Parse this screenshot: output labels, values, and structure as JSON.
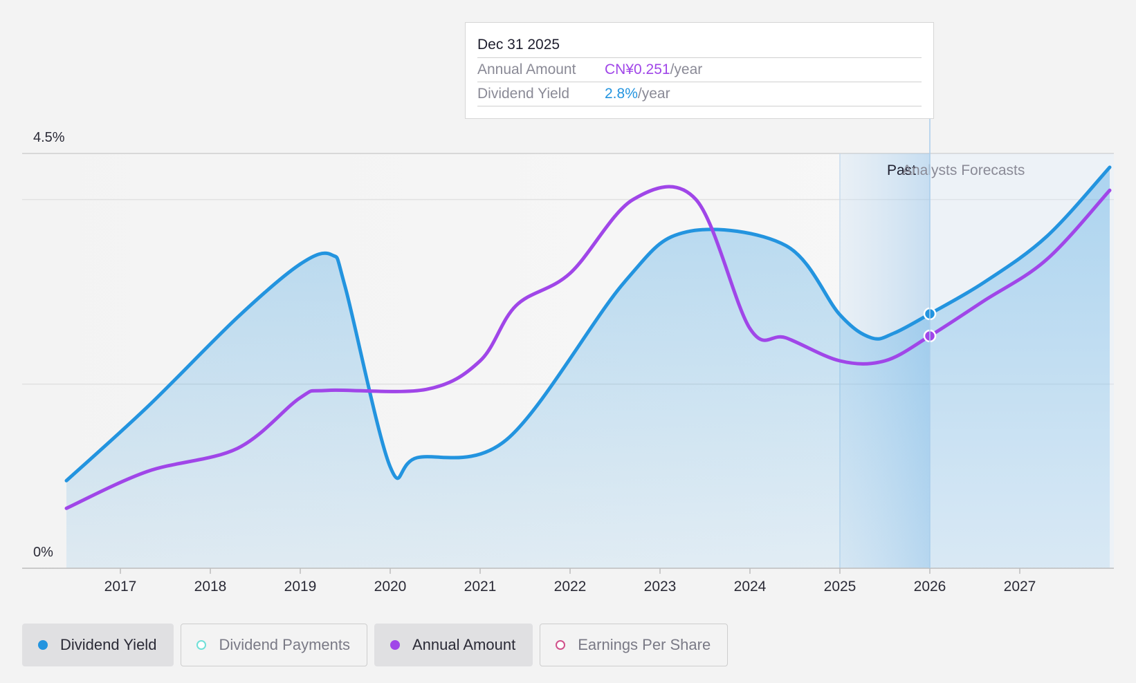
{
  "chart_data": {
    "type": "line",
    "y_ticks": [
      "4.5%",
      "0%"
    ],
    "ylim": [
      0,
      4.5
    ],
    "x_ticks": [
      "2017",
      "2018",
      "2019",
      "2020",
      "2021",
      "2022",
      "2023",
      "2024",
      "2025",
      "2026",
      "2027"
    ],
    "xlim": [
      2016.1,
      2028.0
    ],
    "past_label": "Past",
    "forecast_label": "Analysts Forecasts",
    "series": [
      {
        "name": "Dividend Yield",
        "color": "#2394df",
        "area": true,
        "x": [
          2016.4,
          2017.3,
          2018.3,
          2019.0,
          2019.35,
          2019.5,
          2020.0,
          2020.3,
          2021.3,
          2022.6,
          2023.3,
          2024.4,
          2025.0,
          2025.35,
          2025.6,
          2026.0,
          2026.6,
          2027.3,
          2028.0
        ],
        "y": [
          0.95,
          1.75,
          2.72,
          3.3,
          3.4,
          3.05,
          1.1,
          1.2,
          1.4,
          3.1,
          3.65,
          3.5,
          2.75,
          2.5,
          2.55,
          2.76,
          3.1,
          3.6,
          4.35
        ]
      },
      {
        "name": "Annual Amount",
        "color": "#a046e8",
        "area": false,
        "x": [
          2016.4,
          2017.3,
          2018.3,
          2019.0,
          2019.3,
          2020.4,
          2021.0,
          2021.4,
          2022.0,
          2022.7,
          2023.4,
          2024.0,
          2024.4,
          2025.0,
          2025.5,
          2026.0,
          2026.6,
          2027.3,
          2028.0
        ],
        "y": [
          0.65,
          1.05,
          1.3,
          1.85,
          1.93,
          1.94,
          2.25,
          2.85,
          3.2,
          4.0,
          4.0,
          2.6,
          2.5,
          2.25,
          2.25,
          2.52,
          2.9,
          3.35,
          4.1
        ]
      }
    ],
    "cursor": {
      "x": 2026.0,
      "date": "Dec 31 2025",
      "annual_amount": "CN¥0.251",
      "annual_unit": "/year",
      "yield": "2.8%",
      "yield_unit": "/year",
      "annual_label": "Annual Amount",
      "yield_label": "Dividend Yield",
      "yield_value": 2.76,
      "annual_value": 2.52
    }
  },
  "legend": [
    {
      "label": "Dividend Yield",
      "color": "#2394df",
      "active": true,
      "hollow": false
    },
    {
      "label": "Dividend Payments",
      "color": "#6fe0d8",
      "active": false,
      "hollow": true
    },
    {
      "label": "Annual Amount",
      "color": "#a046e8",
      "active": true,
      "hollow": false
    },
    {
      "label": "Earnings Per Share",
      "color": "#d0508a",
      "active": false,
      "hollow": true
    }
  ]
}
